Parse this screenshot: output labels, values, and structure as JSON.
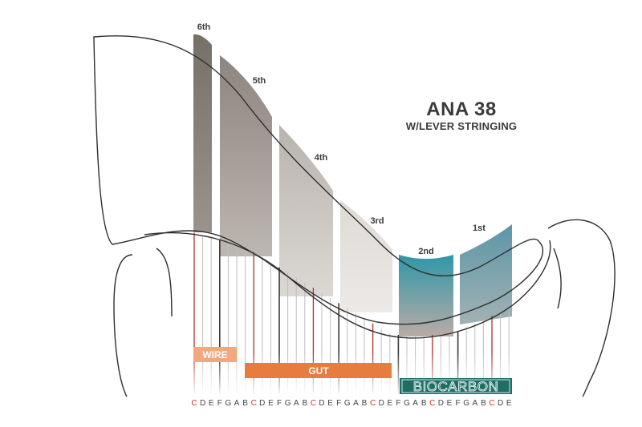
{
  "title": "ANA 38",
  "subtitle": "W/LEVER STRINGING",
  "colors": {
    "wire": "#f0a87c",
    "gut": "#e87c3e",
    "biocarbon": "#1e6e66",
    "c_string": "#b0312b",
    "f_string": "#3a3a3a",
    "other_string": "#bdbdbd",
    "outline": "#2f2f2f"
  },
  "octaves": [
    {
      "label": "6th",
      "color_top": "#757068",
      "color_bottom": "#9a938c"
    },
    {
      "label": "5th",
      "color_top": "#8d857f",
      "color_bottom": "#bdb7b1"
    },
    {
      "label": "4th",
      "color_top": "#b9b3ae",
      "color_bottom": "#dcd8d4"
    },
    {
      "label": "3rd",
      "color_top": "#dedad6",
      "color_bottom": "#ece9e6"
    },
    {
      "label": "2nd",
      "color_top": "#2f97a8",
      "color_bottom": "#b9aba6"
    },
    {
      "label": "1st",
      "color_top": "#5d96a8",
      "color_bottom": "#a1b2b4"
    }
  ],
  "materials": [
    {
      "label": "WIRE",
      "style": "filled-light"
    },
    {
      "label": "GUT",
      "style": "filled"
    },
    {
      "label": "BIOCARBON",
      "style": "outlined-text"
    }
  ],
  "notes": [
    "C",
    "D",
    "E",
    "F",
    "G",
    "A",
    "B",
    "C",
    "D",
    "E",
    "F",
    "G",
    "A",
    "B",
    "C",
    "D",
    "E",
    "F",
    "G",
    "A",
    "B",
    "C",
    "D",
    "E",
    "F",
    "G",
    "A",
    "B",
    "C",
    "D",
    "E",
    "F",
    "G",
    "A",
    "B",
    "C",
    "D",
    "E"
  ],
  "c_note_color": "#c0392b",
  "other_note_color": "#444444"
}
